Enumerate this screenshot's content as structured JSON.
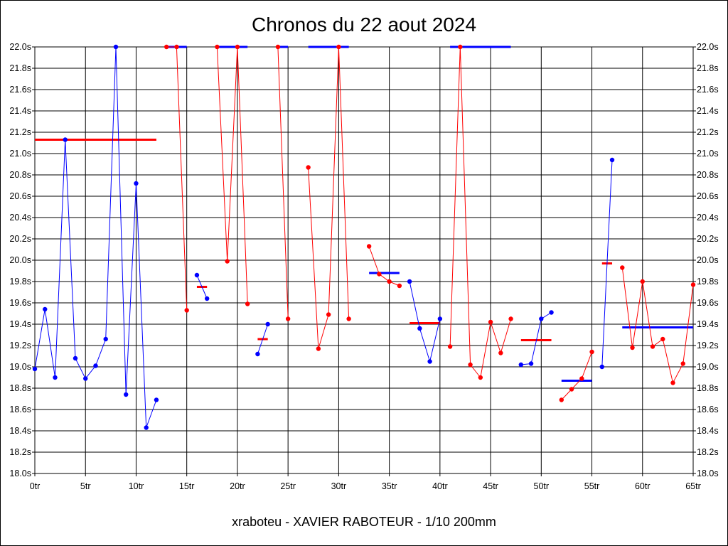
{
  "chart_data": {
    "type": "line",
    "title": "Chronos du 22 aout 2024",
    "footer": "xraboteu - XAVIER RABOTEUR - 1/10 200mm",
    "xlim": [
      0,
      65
    ],
    "ylim": [
      18.0,
      22.0
    ],
    "x_ticks": [
      0,
      5,
      10,
      15,
      20,
      25,
      30,
      35,
      40,
      45,
      50,
      55,
      60,
      65
    ],
    "x_tick_labels": [
      "0tr",
      "5tr",
      "10tr",
      "15tr",
      "20tr",
      "25tr",
      "30tr",
      "35tr",
      "40tr",
      "45tr",
      "50tr",
      "55tr",
      "60tr",
      "65tr"
    ],
    "y_ticks": [
      18.0,
      18.2,
      18.4,
      18.6,
      18.8,
      19.0,
      19.2,
      19.4,
      19.6,
      19.8,
      20.0,
      20.2,
      20.4,
      20.6,
      20.8,
      21.0,
      21.2,
      21.4,
      21.6,
      21.8,
      22.0
    ],
    "y_tick_labels": [
      "18.0s",
      "18.2s",
      "18.4s",
      "18.6s",
      "18.8s",
      "19.0s",
      "19.2s",
      "19.4s",
      "19.6s",
      "19.8s",
      "20.0s",
      "20.2s",
      "20.4s",
      "20.6s",
      "20.8s",
      "21.0s",
      "21.2s",
      "21.4s",
      "21.6s",
      "21.8s",
      "22.0s"
    ],
    "grid": true,
    "colors": {
      "blue": "#0000ff",
      "red": "#ff0000",
      "grid": "#000000"
    },
    "series": [
      {
        "color": "blue",
        "points": [
          [
            0,
            18.98
          ],
          [
            1,
            19.54
          ],
          [
            2,
            18.9
          ],
          [
            3,
            21.13
          ],
          [
            4,
            19.08
          ],
          [
            5,
            18.89
          ],
          [
            6,
            19.01
          ],
          [
            7,
            19.26
          ],
          [
            8,
            22.0
          ],
          [
            9,
            18.74
          ],
          [
            10,
            20.72
          ],
          [
            11,
            18.43
          ],
          [
            12,
            18.69
          ]
        ]
      },
      {
        "color": "red",
        "points": [
          [
            13,
            22.0
          ],
          [
            14,
            22.0
          ],
          [
            15,
            19.53
          ]
        ]
      },
      {
        "color": "blue",
        "points": [
          [
            16,
            19.86
          ],
          [
            17,
            19.64
          ]
        ]
      },
      {
        "color": "red",
        "points": [
          [
            18,
            22.0
          ],
          [
            19,
            19.99
          ],
          [
            20,
            22.0
          ],
          [
            21,
            19.59
          ]
        ]
      },
      {
        "color": "blue",
        "points": [
          [
            22,
            19.12
          ],
          [
            23,
            19.4
          ]
        ]
      },
      {
        "color": "red",
        "points": [
          [
            24,
            22.0
          ],
          [
            25,
            19.45
          ]
        ]
      },
      {
        "color": "red",
        "points": [
          [
            27,
            20.87
          ],
          [
            28,
            19.17
          ],
          [
            29,
            19.49
          ],
          [
            30,
            22.0
          ],
          [
            31,
            19.45
          ]
        ]
      },
      {
        "color": "red",
        "points": [
          [
            33,
            20.13
          ],
          [
            34,
            19.87
          ],
          [
            35,
            19.8
          ],
          [
            36,
            19.76
          ]
        ]
      },
      {
        "color": "blue",
        "points": [
          [
            37,
            19.8
          ],
          [
            38,
            19.36
          ],
          [
            39,
            19.05
          ],
          [
            40,
            19.45
          ]
        ]
      },
      {
        "color": "red",
        "points": [
          [
            41,
            19.19
          ],
          [
            42,
            22.0
          ],
          [
            43,
            19.02
          ],
          [
            44,
            18.9
          ],
          [
            45,
            19.42
          ],
          [
            46,
            19.13
          ],
          [
            47,
            19.45
          ]
        ]
      },
      {
        "color": "blue",
        "points": [
          [
            48,
            19.02
          ],
          [
            49,
            19.03
          ],
          [
            50,
            19.45
          ],
          [
            51,
            19.51
          ]
        ]
      },
      {
        "color": "red",
        "points": [
          [
            52,
            18.69
          ],
          [
            53,
            18.79
          ],
          [
            54,
            18.89
          ],
          [
            55,
            19.14
          ]
        ]
      },
      {
        "color": "blue",
        "points": [
          [
            56,
            19.0
          ],
          [
            57,
            20.94
          ]
        ]
      },
      {
        "color": "red",
        "points": [
          [
            58,
            19.93
          ],
          [
            59,
            19.18
          ],
          [
            60,
            19.8
          ],
          [
            61,
            19.19
          ],
          [
            62,
            19.26
          ],
          [
            63,
            18.85
          ],
          [
            64,
            19.03
          ],
          [
            65,
            19.77
          ]
        ]
      }
    ],
    "averages": [
      {
        "color": "red",
        "x": [
          0,
          12
        ],
        "y": 21.13
      },
      {
        "color": "blue",
        "x": [
          13,
          15
        ],
        "y": 22.0
      },
      {
        "color": "red",
        "x": [
          16,
          17
        ],
        "y": 19.75
      },
      {
        "color": "blue",
        "x": [
          18,
          21
        ],
        "y": 22.0
      },
      {
        "color": "red",
        "x": [
          22,
          23
        ],
        "y": 19.26
      },
      {
        "color": "blue",
        "x": [
          24,
          25
        ],
        "y": 22.0
      },
      {
        "color": "blue",
        "x": [
          27,
          31
        ],
        "y": 22.0
      },
      {
        "color": "blue",
        "x": [
          33,
          36
        ],
        "y": 19.88
      },
      {
        "color": "red",
        "x": [
          37,
          40
        ],
        "y": 19.41
      },
      {
        "color": "blue",
        "x": [
          41,
          47
        ],
        "y": 22.0
      },
      {
        "color": "red",
        "x": [
          48,
          51
        ],
        "y": 19.25
      },
      {
        "color": "blue",
        "x": [
          52,
          55
        ],
        "y": 18.87
      },
      {
        "color": "red",
        "x": [
          56,
          57
        ],
        "y": 19.97
      },
      {
        "color": "blue",
        "x": [
          58,
          65
        ],
        "y": 19.37
      }
    ]
  }
}
